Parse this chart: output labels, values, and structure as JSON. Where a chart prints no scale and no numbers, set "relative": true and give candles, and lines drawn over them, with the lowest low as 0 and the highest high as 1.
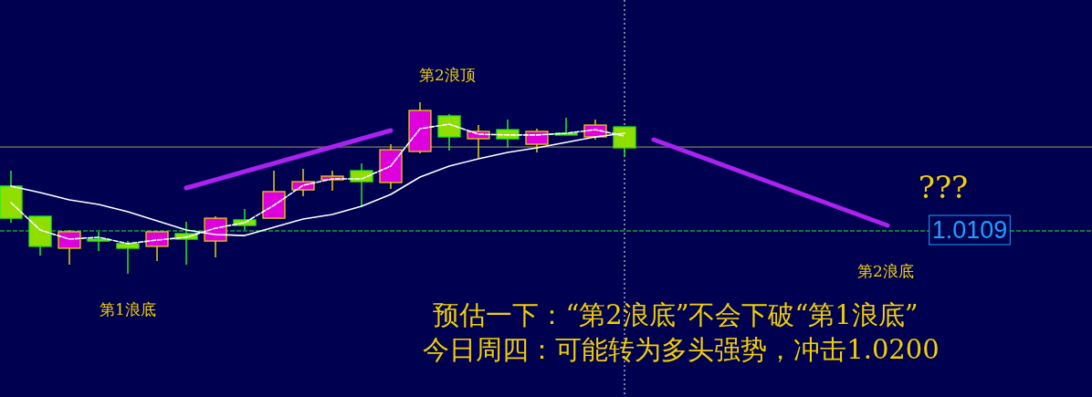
{
  "chart_data": {
    "type": "candlestick",
    "relative": true,
    "categories": [
      null,
      null,
      null,
      null,
      null,
      null,
      null,
      null,
      null,
      null,
      null,
      null,
      null,
      null,
      null,
      null,
      null,
      null,
      null,
      null,
      null,
      null,
      null,
      null,
      null,
      null,
      null,
      null,
      null,
      null,
      null,
      null,
      null,
      null,
      null,
      null,
      null,
      null
    ],
    "ohlc": [
      [
        0.511,
        0.601,
        0.298,
        0.324
      ],
      [
        0.335,
        0.335,
        0.106,
        0.16
      ],
      [
        0.149,
        0.255,
        0.053,
        0.245
      ],
      [
        0.202,
        0.245,
        0.133,
        0.191
      ],
      [
        0.176,
        0.191,
        0,
        0.149
      ],
      [
        0.16,
        0.245,
        0.074,
        0.245
      ],
      [
        0.234,
        0.303,
        0.053,
        0.202
      ],
      [
        0.191,
        0.335,
        0.096,
        0.324
      ],
      [
        0.314,
        0.378,
        0.255,
        0.282
      ],
      [
        0.324,
        0.601,
        0.324,
        0.479
      ],
      [
        0.489,
        0.612,
        0.452,
        0.537
      ],
      [
        0.548,
        0.601,
        0.484,
        0.569
      ],
      [
        0.601,
        0.644,
        0.388,
        0.537
      ],
      [
        0.532,
        0.755,
        0.495,
        0.723
      ],
      [
        0.713,
        1,
        0.702,
        0.952
      ],
      [
        0.92,
        0.931,
        0.718,
        0.798
      ],
      [
        0.787,
        0.867,
        0.676,
        0.83
      ],
      [
        0.84,
        0.899,
        0.734,
        0.787
      ],
      [
        0.755,
        0.846,
        0.707,
        0.83
      ],
      [
        0.819,
        0.91,
        0.809,
        0.809
      ],
      [
        0.798,
        0.899,
        0.782,
        0.867
      ],
      [
        0.856,
        0.856,
        0.681,
        0.734
      ],
      null,
      null,
      null,
      null,
      null,
      null,
      null,
      null,
      null,
      null,
      null,
      null,
      null,
      null,
      null,
      null
    ],
    "colors": [
      "#90dd00",
      "#90dd00",
      "#dd00dd",
      "#90dd00",
      "#90dd00",
      "#dd00dd",
      "#90dd00",
      "#dd00dd",
      "#90dd00",
      "#dd00dd",
      "#dd00dd",
      "#dd00dd",
      "#90dd00",
      "#dd00dd",
      "#dd00dd",
      "#90dd00",
      "#dd00dd",
      "#90dd00",
      "#dd00dd",
      "#90dd00",
      "#dd00dd",
      "#90dd00",
      null,
      null,
      null,
      null,
      null,
      null,
      null,
      null,
      null,
      null,
      null,
      null,
      null,
      null,
      null,
      null
    ],
    "series": [
      {
        "type": "line",
        "color": "#ffffff",
        "line_style": "dashed",
        "values": [
          0.415,
          0.255,
          0.202,
          0.213,
          0.176,
          0.197,
          0.213,
          0.266,
          0.298,
          0.399,
          0.516,
          0.553,
          0.553,
          0.628,
          0.846,
          0.872,
          0.814,
          0.809,
          0.809,
          0.819,
          0.84,
          0.803,
          null,
          null,
          null,
          null,
          null,
          null,
          null,
          null,
          null,
          null,
          null,
          null,
          null,
          null,
          null,
          null
        ]
      },
      {
        "type": "line",
        "color": "#ffffff",
        "line_style": "solid",
        "values": [
          0.511,
          0.473,
          0.431,
          0.404,
          0.362,
          0.309,
          0.255,
          0.229,
          0.223,
          0.271,
          0.319,
          0.346,
          0.394,
          0.463,
          0.564,
          0.628,
          0.67,
          0.707,
          0.734,
          0.766,
          0.798,
          0.819,
          null,
          null,
          null,
          null,
          null,
          null,
          null,
          null,
          null,
          null,
          null,
          null,
          null,
          null,
          null,
          null
        ]
      },
      {
        "type": "line",
        "color": "#aa22ee",
        "line_style": "solid",
        "values": [
          null,
          null,
          null,
          null,
          null,
          null,
          0.5,
          null,
          null,
          null,
          null,
          null,
          null,
          0.835,
          null,
          null,
          null,
          null,
          null,
          null,
          null,
          null,
          null,
          null,
          null,
          null,
          null,
          null,
          null,
          null,
          null,
          null,
          null,
          null,
          null,
          null,
          null,
          null
        ]
      },
      {
        "type": "line",
        "color": "#aa22ee",
        "line_style": "solid",
        "values": [
          null,
          null,
          null,
          null,
          null,
          null,
          null,
          null,
          null,
          null,
          null,
          null,
          null,
          null,
          null,
          null,
          null,
          null,
          null,
          null,
          null,
          null,
          0.782,
          null,
          null,
          null,
          null,
          null,
          null,
          null,
          0.282,
          null,
          null,
          null,
          null,
          null,
          null,
          null
        ]
      }
    ],
    "ref_lines": [
      {
        "axis": "y",
        "value": 0.739,
        "color": "#a0a060",
        "line_style": "solid"
      },
      {
        "axis": "y",
        "value": 0.25,
        "color": "#22ee22",
        "line_style": "dashed"
      }
    ],
    "annotations": [
      "第2浪顶",
      "第1浪底",
      "第2浪底",
      "???",
      "预估一下：“第2浪底”不会下破“第1浪底”",
      "今日周四：可能转为多头强势，冲击1.0200",
      "1.0109"
    ]
  }
}
